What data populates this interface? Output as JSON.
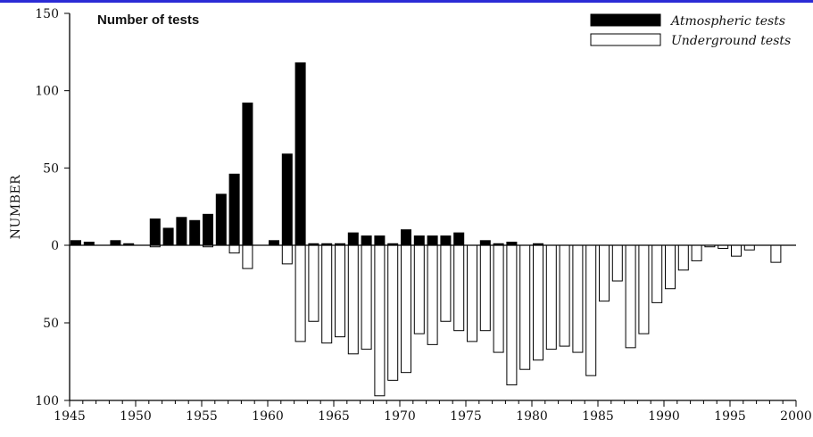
{
  "chart_data": {
    "type": "bar",
    "title": "Number of tests",
    "xlabel": "",
    "ylabel": "NUMBER",
    "xlim": [
      1945,
      2000
    ],
    "x_ticks": [
      "1945",
      "1950",
      "1955",
      "1960",
      "1965",
      "1970",
      "1975",
      "1980",
      "1985",
      "1990",
      "1995",
      "2000"
    ],
    "y_ticks_up": [
      "0",
      "50",
      "100",
      "150"
    ],
    "y_ticks_down": [
      "50",
      "100"
    ],
    "ylim_up": [
      0,
      150
    ],
    "ylim_down": [
      0,
      100
    ],
    "legend": {
      "placement": "top-right"
    },
    "series": [
      {
        "name": "Atmospheric tests",
        "direction": "up",
        "fill": "#000000",
        "x": [
          1945,
          1946,
          1948,
          1949,
          1951,
          1952,
          1953,
          1954,
          1955,
          1956,
          1957,
          1958,
          1960,
          1961,
          1962,
          1963,
          1964,
          1965,
          1966,
          1967,
          1968,
          1969,
          1970,
          1971,
          1972,
          1973,
          1974,
          1976,
          1977,
          1978,
          1980
        ],
        "values": [
          3,
          2,
          3,
          1,
          17,
          11,
          18,
          16,
          20,
          33,
          46,
          92,
          3,
          59,
          118,
          1,
          1,
          1,
          8,
          6,
          6,
          1,
          10,
          6,
          6,
          6,
          8,
          3,
          1,
          2,
          1
        ]
      },
      {
        "name": "Underground tests",
        "direction": "down",
        "fill": "#ffffff",
        "x": [
          1951,
          1955,
          1957,
          1958,
          1961,
          1962,
          1963,
          1964,
          1965,
          1966,
          1967,
          1968,
          1969,
          1970,
          1971,
          1972,
          1973,
          1974,
          1975,
          1976,
          1977,
          1978,
          1979,
          1980,
          1981,
          1982,
          1983,
          1984,
          1985,
          1986,
          1987,
          1988,
          1989,
          1990,
          1991,
          1992,
          1993,
          1994,
          1995,
          1996,
          1998
        ],
        "values": [
          1,
          1,
          5,
          15,
          12,
          62,
          49,
          63,
          59,
          70,
          67,
          97,
          87,
          82,
          57,
          64,
          49,
          55,
          62,
          55,
          69,
          90,
          80,
          74,
          67,
          65,
          69,
          84,
          36,
          23,
          66,
          57,
          37,
          28,
          16,
          10,
          1,
          2,
          7,
          3,
          11
        ]
      }
    ]
  }
}
